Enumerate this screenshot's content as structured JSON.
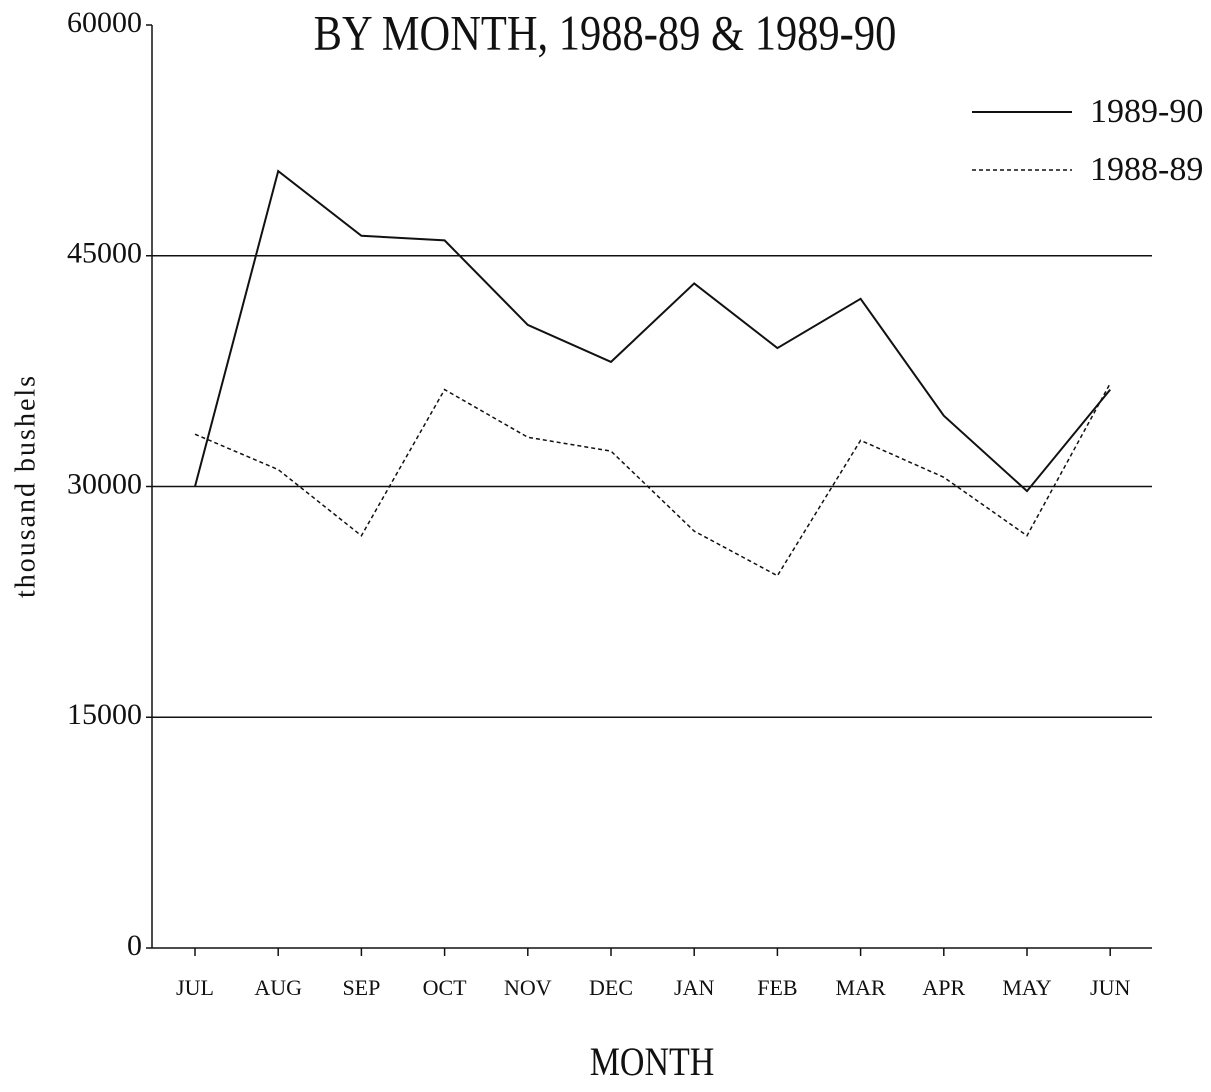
{
  "chart_data": {
    "type": "line",
    "title": "BY MONTH, 1988-89 & 1989-90",
    "x_label": "MONTH",
    "y_label": "thousand bushels",
    "categories": [
      "JUL",
      "AUG",
      "SEP",
      "OCT",
      "NOV",
      "DEC",
      "JAN",
      "FEB",
      "MAR",
      "APR",
      "MAY",
      "JUN"
    ],
    "series": [
      {
        "name": "1989-90",
        "color": "#111111",
        "dash": "solid",
        "values": [
          30000,
          50500,
          46300,
          46000,
          40500,
          38100,
          43200,
          39000,
          42200,
          34600,
          29700,
          36300
        ]
      },
      {
        "name": "1988-89",
        "color": "#111111",
        "dash": "dotted",
        "values": [
          33400,
          31100,
          26800,
          36300,
          33200,
          32300,
          27100,
          24200,
          33000,
          30600,
          26800,
          36700
        ]
      }
    ],
    "ylim": [
      0,
      60000
    ],
    "yticks": [
      0,
      15000,
      30000,
      45000,
      60000
    ],
    "grid": true,
    "legend": "top-right"
  }
}
